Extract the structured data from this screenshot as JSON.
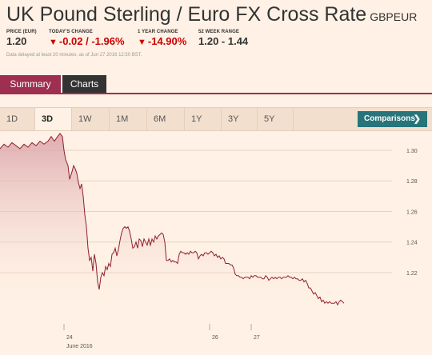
{
  "header": {
    "title": "UK Pound Sterling / Euro FX Cross Rate",
    "ticker": "GBPEUR"
  },
  "stats": {
    "price_label": "PRICE (EUR)",
    "price_value": "1.20",
    "today_label": "TODAY'S CHANGE",
    "today_value": "-0.02 / -1.96%",
    "year_label": "1 YEAR CHANGE",
    "year_value": "-14.90%",
    "range_label": "52 WEEK RANGE",
    "range_value": "1.20 - 1.44",
    "delay_note": "Data delayed at least 20 minutes, as of Jun 27 2016 12:50 BST."
  },
  "tabs": {
    "summary": "Summary",
    "charts": "Charts"
  },
  "ranges": [
    "1D",
    "3D",
    "1W",
    "1M",
    "6M",
    "1Y",
    "3Y",
    "5Y"
  ],
  "active_range": "3D",
  "comparisons_label": "Comparisons",
  "colors": {
    "accent": "#9e2f50",
    "negative": "#cc0000",
    "comparisons": "#27757b",
    "line": "#8f1f2e",
    "background": "#fff1e5"
  },
  "chart_data": {
    "type": "area",
    "yticks": [
      "1.30",
      "1.28",
      "1.26",
      "1.24",
      "1.22"
    ],
    "ylim": [
      1.197,
      1.312
    ],
    "xticks": [
      {
        "label": "24",
        "sub": "June 2016",
        "t": 80
      },
      {
        "label": "26",
        "sub": "",
        "t": 262
      },
      {
        "label": "27",
        "sub": "",
        "t": 314
      }
    ],
    "xlim": [
      0,
      490
    ],
    "series": [
      {
        "values": [
          [
            0,
            1.301
          ],
          [
            5,
            1.304
          ],
          [
            10,
            1.302
          ],
          [
            15,
            1.305
          ],
          [
            20,
            1.303
          ],
          [
            25,
            1.301
          ],
          [
            30,
            1.304
          ],
          [
            35,
            1.302
          ],
          [
            40,
            1.305
          ],
          [
            45,
            1.303
          ],
          [
            50,
            1.306
          ],
          [
            55,
            1.304
          ],
          [
            60,
            1.306
          ],
          [
            64,
            1.309
          ],
          [
            68,
            1.306
          ],
          [
            72,
            1.309
          ],
          [
            75,
            1.311
          ],
          [
            78,
            1.309
          ],
          [
            80,
            1.3
          ],
          [
            82,
            1.294
          ],
          [
            85,
            1.29
          ],
          [
            87,
            1.281
          ],
          [
            90,
            1.286
          ],
          [
            92,
            1.29
          ],
          [
            94,
            1.288
          ],
          [
            96,
            1.285
          ],
          [
            98,
            1.279
          ],
          [
            100,
            1.275
          ],
          [
            102,
            1.278
          ],
          [
            104,
            1.27
          ],
          [
            106,
            1.258
          ],
          [
            108,
            1.25
          ],
          [
            110,
            1.236
          ],
          [
            112,
            1.228
          ],
          [
            114,
            1.23
          ],
          [
            116,
            1.221
          ],
          [
            118,
            1.232
          ],
          [
            120,
            1.226
          ],
          [
            122,
            1.214
          ],
          [
            124,
            1.209
          ],
          [
            126,
            1.217
          ],
          [
            128,
            1.22
          ],
          [
            130,
            1.218
          ],
          [
            132,
            1.224
          ],
          [
            134,
            1.222
          ],
          [
            136,
            1.226
          ],
          [
            138,
            1.224
          ],
          [
            140,
            1.232
          ],
          [
            142,
            1.233
          ],
          [
            144,
            1.236
          ],
          [
            146,
            1.231
          ],
          [
            148,
            1.235
          ],
          [
            150,
            1.241
          ],
          [
            152,
            1.246
          ],
          [
            154,
            1.249
          ],
          [
            156,
            1.25
          ],
          [
            158,
            1.249
          ],
          [
            160,
            1.25
          ],
          [
            162,
            1.247
          ],
          [
            164,
            1.242
          ],
          [
            166,
            1.236
          ],
          [
            168,
            1.237
          ],
          [
            170,
            1.24
          ],
          [
            172,
            1.236
          ],
          [
            174,
            1.242
          ],
          [
            176,
            1.241
          ],
          [
            178,
            1.237
          ],
          [
            180,
            1.242
          ],
          [
            182,
            1.24
          ],
          [
            184,
            1.238
          ],
          [
            186,
            1.242
          ],
          [
            188,
            1.238
          ],
          [
            190,
            1.242
          ],
          [
            192,
            1.24
          ],
          [
            194,
            1.244
          ],
          [
            196,
            1.242
          ],
          [
            198,
            1.244
          ],
          [
            200,
            1.245
          ],
          [
            202,
            1.246
          ],
          [
            204,
            1.245
          ],
          [
            206,
            1.24
          ],
          [
            208,
            1.228
          ],
          [
            210,
            1.228
          ],
          [
            212,
            1.229
          ],
          [
            214,
            1.227
          ],
          [
            216,
            1.228
          ],
          [
            218,
            1.227
          ],
          [
            220,
            1.227
          ],
          [
            222,
            1.226
          ],
          [
            224,
            1.232
          ],
          [
            226,
            1.234
          ],
          [
            228,
            1.233
          ],
          [
            230,
            1.233
          ],
          [
            232,
            1.232
          ],
          [
            234,
            1.233
          ],
          [
            236,
            1.232
          ],
          [
            238,
            1.234
          ],
          [
            240,
            1.233
          ],
          [
            242,
            1.233
          ],
          [
            244,
            1.234
          ],
          [
            246,
            1.233
          ],
          [
            248,
            1.229
          ],
          [
            250,
            1.231
          ],
          [
            252,
            1.232
          ],
          [
            254,
            1.231
          ],
          [
            256,
            1.233
          ],
          [
            258,
            1.233
          ],
          [
            260,
            1.232
          ],
          [
            262,
            1.233
          ],
          [
            264,
            1.234
          ],
          [
            266,
            1.233
          ],
          [
            268,
            1.231
          ],
          [
            270,
            1.232
          ],
          [
            272,
            1.23
          ],
          [
            274,
            1.231
          ],
          [
            276,
            1.229
          ],
          [
            278,
            1.23
          ],
          [
            280,
            1.229
          ],
          [
            282,
            1.226
          ],
          [
            284,
            1.226
          ],
          [
            286,
            1.226
          ],
          [
            288,
            1.225
          ],
          [
            290,
            1.225
          ],
          [
            292,
            1.223
          ],
          [
            294,
            1.219
          ],
          [
            296,
            1.218
          ],
          [
            298,
            1.218
          ],
          [
            300,
            1.217
          ],
          [
            302,
            1.217
          ],
          [
            304,
            1.216
          ],
          [
            306,
            1.217
          ],
          [
            308,
            1.217
          ],
          [
            310,
            1.217
          ],
          [
            312,
            1.216
          ],
          [
            314,
            1.218
          ],
          [
            316,
            1.217
          ],
          [
            318,
            1.218
          ],
          [
            320,
            1.218
          ],
          [
            322,
            1.217
          ],
          [
            324,
            1.217
          ],
          [
            326,
            1.217
          ],
          [
            328,
            1.216
          ],
          [
            330,
            1.216
          ],
          [
            332,
            1.218
          ],
          [
            334,
            1.217
          ],
          [
            336,
            1.215
          ],
          [
            338,
            1.216
          ],
          [
            340,
            1.217
          ],
          [
            342,
            1.216
          ],
          [
            344,
            1.217
          ],
          [
            346,
            1.216
          ],
          [
            348,
            1.217
          ],
          [
            350,
            1.217
          ],
          [
            352,
            1.216
          ],
          [
            354,
            1.217
          ],
          [
            356,
            1.217
          ],
          [
            358,
            1.217
          ],
          [
            360,
            1.218
          ],
          [
            362,
            1.217
          ],
          [
            364,
            1.217
          ],
          [
            366,
            1.216
          ],
          [
            368,
            1.217
          ],
          [
            370,
            1.216
          ],
          [
            372,
            1.216
          ],
          [
            374,
            1.215
          ],
          [
            376,
            1.215
          ],
          [
            378,
            1.216
          ],
          [
            380,
            1.214
          ],
          [
            382,
            1.215
          ],
          [
            384,
            1.213
          ],
          [
            386,
            1.21
          ],
          [
            388,
            1.21
          ],
          [
            390,
            1.208
          ],
          [
            392,
            1.206
          ],
          [
            394,
            1.207
          ],
          [
            396,
            1.205
          ],
          [
            398,
            1.203
          ],
          [
            400,
            1.204
          ],
          [
            402,
            1.201
          ],
          [
            404,
            1.202
          ],
          [
            406,
            1.2
          ],
          [
            408,
            1.201
          ],
          [
            410,
            1.2
          ],
          [
            412,
            1.201
          ],
          [
            414,
            1.2
          ],
          [
            416,
            1.2
          ],
          [
            418,
            1.2
          ],
          [
            420,
            1.201
          ],
          [
            422,
            1.199
          ],
          [
            424,
            1.201
          ],
          [
            426,
            1.202
          ],
          [
            428,
            1.201
          ],
          [
            430,
            1.2
          ]
        ]
      }
    ],
    "grid": true
  }
}
